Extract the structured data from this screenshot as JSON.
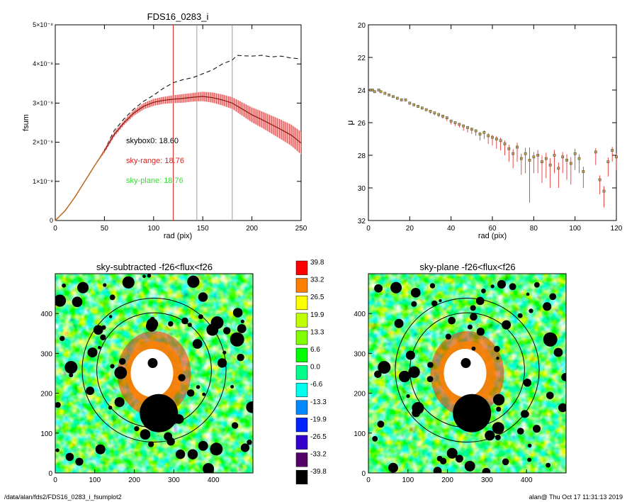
{
  "footer": {
    "path": "/data/alan/fds2/FDS16_0283_i_fsumplot2",
    "stamp": "alan@  Thu Oct 17 11:31:13 2019"
  },
  "colors": {
    "profile_red": "#e0201c",
    "error_pink": "#f4a6a6",
    "green_text": "#33dd33",
    "vline_gray": "#9a9a9a"
  },
  "chart_data": [
    {
      "type": "line",
      "title": "FDS16_0283_i",
      "xlabel": "rad (pix)",
      "ylabel": "fsum",
      "xlim": [
        0,
        250
      ],
      "ylim": [
        0,
        5e-08
      ],
      "xticks": [
        "0",
        "50",
        "100",
        "150",
        "200",
        "250"
      ],
      "yticks": [
        {
          "value": 0,
          "label": "0"
        },
        {
          "value": 1e-08,
          "label": "1×10⁻⁸"
        },
        {
          "value": 2e-08,
          "label": "2×10⁻⁸"
        },
        {
          "value": 3e-08,
          "label": "3×10⁻⁸"
        },
        {
          "value": 4e-08,
          "label": "4×10⁻⁸"
        },
        {
          "value": 5e-08,
          "label": "5×10⁻⁸"
        }
      ],
      "vertical_lines": [
        {
          "x": 120,
          "color": "red"
        },
        {
          "x": 144,
          "color": "gray"
        },
        {
          "x": 180,
          "color": "gray"
        }
      ],
      "annotations": [
        {
          "text": "skybox0: 18.60",
          "color": "black"
        },
        {
          "text": "sky-range: 18.76",
          "color": "red"
        },
        {
          "text": "sky-plane: 18.76",
          "color": "green"
        }
      ],
      "series": [
        {
          "style": "dashed-black",
          "x": [
            0,
            10,
            20,
            30,
            40,
            50,
            60,
            70,
            80,
            90,
            100,
            110,
            120,
            130,
            140,
            150,
            160,
            170,
            180,
            185,
            190,
            200,
            210,
            220,
            230,
            240,
            250
          ],
          "y": [
            0,
            2.5e-09,
            6e-09,
            1e-08,
            1.4e-08,
            1.8e-08,
            2.3e-08,
            2.6e-08,
            2.85e-08,
            3.05e-08,
            3.2e-08,
            3.38e-08,
            3.52e-08,
            3.6e-08,
            3.65e-08,
            3.75e-08,
            3.85e-08,
            4e-08,
            4.1e-08,
            4.22e-08,
            4.21e-08,
            4.2e-08,
            4.22e-08,
            4.18e-08,
            4.2e-08,
            4.15e-08,
            4.13e-08
          ]
        },
        {
          "style": "red-with-errors",
          "x": [
            0,
            10,
            20,
            30,
            40,
            50,
            60,
            70,
            80,
            90,
            100,
            110,
            120,
            130,
            140,
            150,
            160,
            170,
            180,
            190,
            200,
            210,
            220,
            230,
            240,
            250
          ],
          "y": [
            0,
            2.5e-09,
            6e-09,
            1e-08,
            1.4e-08,
            1.78e-08,
            2.2e-08,
            2.5e-08,
            2.75e-08,
            2.92e-08,
            3.02e-08,
            3.07e-08,
            3.1e-08,
            3.12e-08,
            3.15e-08,
            3.17e-08,
            3.14e-08,
            3.08e-08,
            3e-08,
            2.85e-08,
            2.7e-08,
            2.58e-08,
            2.45e-08,
            2.32e-08,
            2.18e-08,
            1.98e-08
          ],
          "err": [
            0,
            0,
            0,
            0,
            0,
            5e-10,
            6e-10,
            6e-10,
            7e-10,
            8e-10,
            9e-10,
            9e-10,
            1e-09,
            1.1e-09,
            1.1e-09,
            1.2e-09,
            1.3e-09,
            1.4e-09,
            1.5e-09,
            1.7e-09,
            1.9e-09,
            2.1e-09,
            2.3e-09,
            2.5e-09,
            2.7e-09,
            2.9e-09
          ]
        }
      ]
    },
    {
      "type": "scatter",
      "title": "",
      "xlabel": "rad (pix)",
      "ylabel": "μ",
      "xlim": [
        0,
        120
      ],
      "ylim": [
        32,
        20
      ],
      "xticks": [
        "0",
        "20",
        "40",
        "60",
        "80",
        "100",
        "120"
      ],
      "yticks": [
        "20",
        "22",
        "24",
        "26",
        "28",
        "30",
        "32"
      ],
      "series": [
        {
          "marker": "small-squares-with-red-errorbars",
          "x": [
            1,
            2,
            3,
            5,
            6,
            8,
            10,
            12,
            14,
            16,
            18,
            20,
            22,
            24,
            26,
            28,
            30,
            32,
            34,
            36,
            38,
            40,
            42,
            44,
            46,
            48,
            50,
            52,
            54,
            56,
            58,
            60,
            62,
            64,
            66,
            68,
            70,
            72,
            74,
            76,
            78,
            80,
            82,
            84,
            86,
            88,
            90,
            92,
            94,
            96,
            98,
            100,
            102,
            104,
            110,
            112,
            114,
            116,
            118,
            120
          ],
          "y": [
            24.0,
            24.0,
            24.1,
            24.0,
            24.1,
            24.2,
            24.3,
            24.4,
            24.5,
            24.6,
            24.6,
            24.8,
            24.9,
            25.0,
            25.1,
            25.2,
            25.3,
            25.4,
            25.5,
            25.6,
            25.7,
            25.9,
            26.0,
            26.1,
            26.2,
            26.3,
            26.4,
            26.5,
            26.7,
            26.6,
            26.8,
            26.9,
            27.0,
            27.1,
            27.3,
            27.6,
            27.9,
            27.5,
            28.2,
            27.9,
            28.3,
            28.1,
            28.0,
            28.4,
            28.2,
            28.6,
            28.0,
            28.8,
            28.1,
            28.3,
            28.5,
            27.9,
            28.2,
            29.0,
            27.8,
            29.5,
            30.2,
            28.4,
            27.7,
            28.1
          ],
          "err": [
            0.05,
            0.05,
            0.05,
            0.05,
            0.05,
            0.05,
            0.05,
            0.05,
            0.1,
            0.1,
            0.1,
            0.1,
            0.1,
            0.1,
            0.1,
            0.1,
            0.15,
            0.15,
            0.15,
            0.15,
            0.2,
            0.2,
            0.2,
            0.2,
            0.3,
            0.3,
            0.3,
            0.3,
            0.4,
            0.4,
            0.5,
            0.5,
            0.6,
            0.6,
            0.7,
            0.8,
            0.9,
            0.9,
            1.0,
            1.2,
            2.6,
            1.0,
            1.1,
            1.3,
            1.2,
            1.4,
            1.1,
            1.2,
            1.0,
            1.2,
            1.3,
            1.0,
            0.9,
            1.0,
            0.8,
            0.9,
            1.0,
            0.9,
            0.7,
            0.8
          ]
        }
      ]
    },
    {
      "type": "heatmap",
      "title": "sky-subtracted -f26<flux<f26",
      "xlim": [
        0,
        500
      ],
      "ylim": [
        0,
        500
      ],
      "xticks": [
        "0",
        "100",
        "200",
        "300",
        "400"
      ],
      "yticks": [
        "0",
        "100",
        "200",
        "300",
        "400"
      ],
      "ellipses": [
        {
          "cx": 250,
          "cy": 258,
          "r": 145
        },
        {
          "cx": 250,
          "cy": 258,
          "r": 182
        }
      ]
    },
    {
      "type": "heatmap",
      "title": "sky-plane -f26<flux<f26",
      "xlim": [
        0,
        500
      ],
      "ylim": [
        0,
        500
      ],
      "xticks": [
        "0",
        "100",
        "200",
        "300",
        "400"
      ],
      "yticks": [
        "0",
        "100",
        "200",
        "300",
        "400"
      ],
      "ellipses": [
        {
          "cx": 250,
          "cy": 258,
          "r": 145
        },
        {
          "cx": 250,
          "cy": 258,
          "r": 182
        }
      ]
    }
  ],
  "colorbar": {
    "levels": [
      {
        "label": "39.8",
        "color": "#ff0000"
      },
      {
        "label": "33.2",
        "color": "#ff7f00"
      },
      {
        "label": "26.5",
        "color": "#ffff00"
      },
      {
        "label": "19.9",
        "color": "#bfff00"
      },
      {
        "label": "13.3",
        "color": "#7fff00"
      },
      {
        "label": "6.6",
        "color": "#00ff00"
      },
      {
        "label": "0.0",
        "color": "#00ff88"
      },
      {
        "label": "-6.6",
        "color": "#00ffee"
      },
      {
        "label": "-13.3",
        "color": "#0088ff"
      },
      {
        "label": "-19.9",
        "color": "#0022ff"
      },
      {
        "label": "-26.5",
        "color": "#3300cc"
      },
      {
        "label": "-33.2",
        "color": "#550066"
      },
      {
        "label": "-39.8",
        "color": "#000000"
      }
    ]
  }
}
